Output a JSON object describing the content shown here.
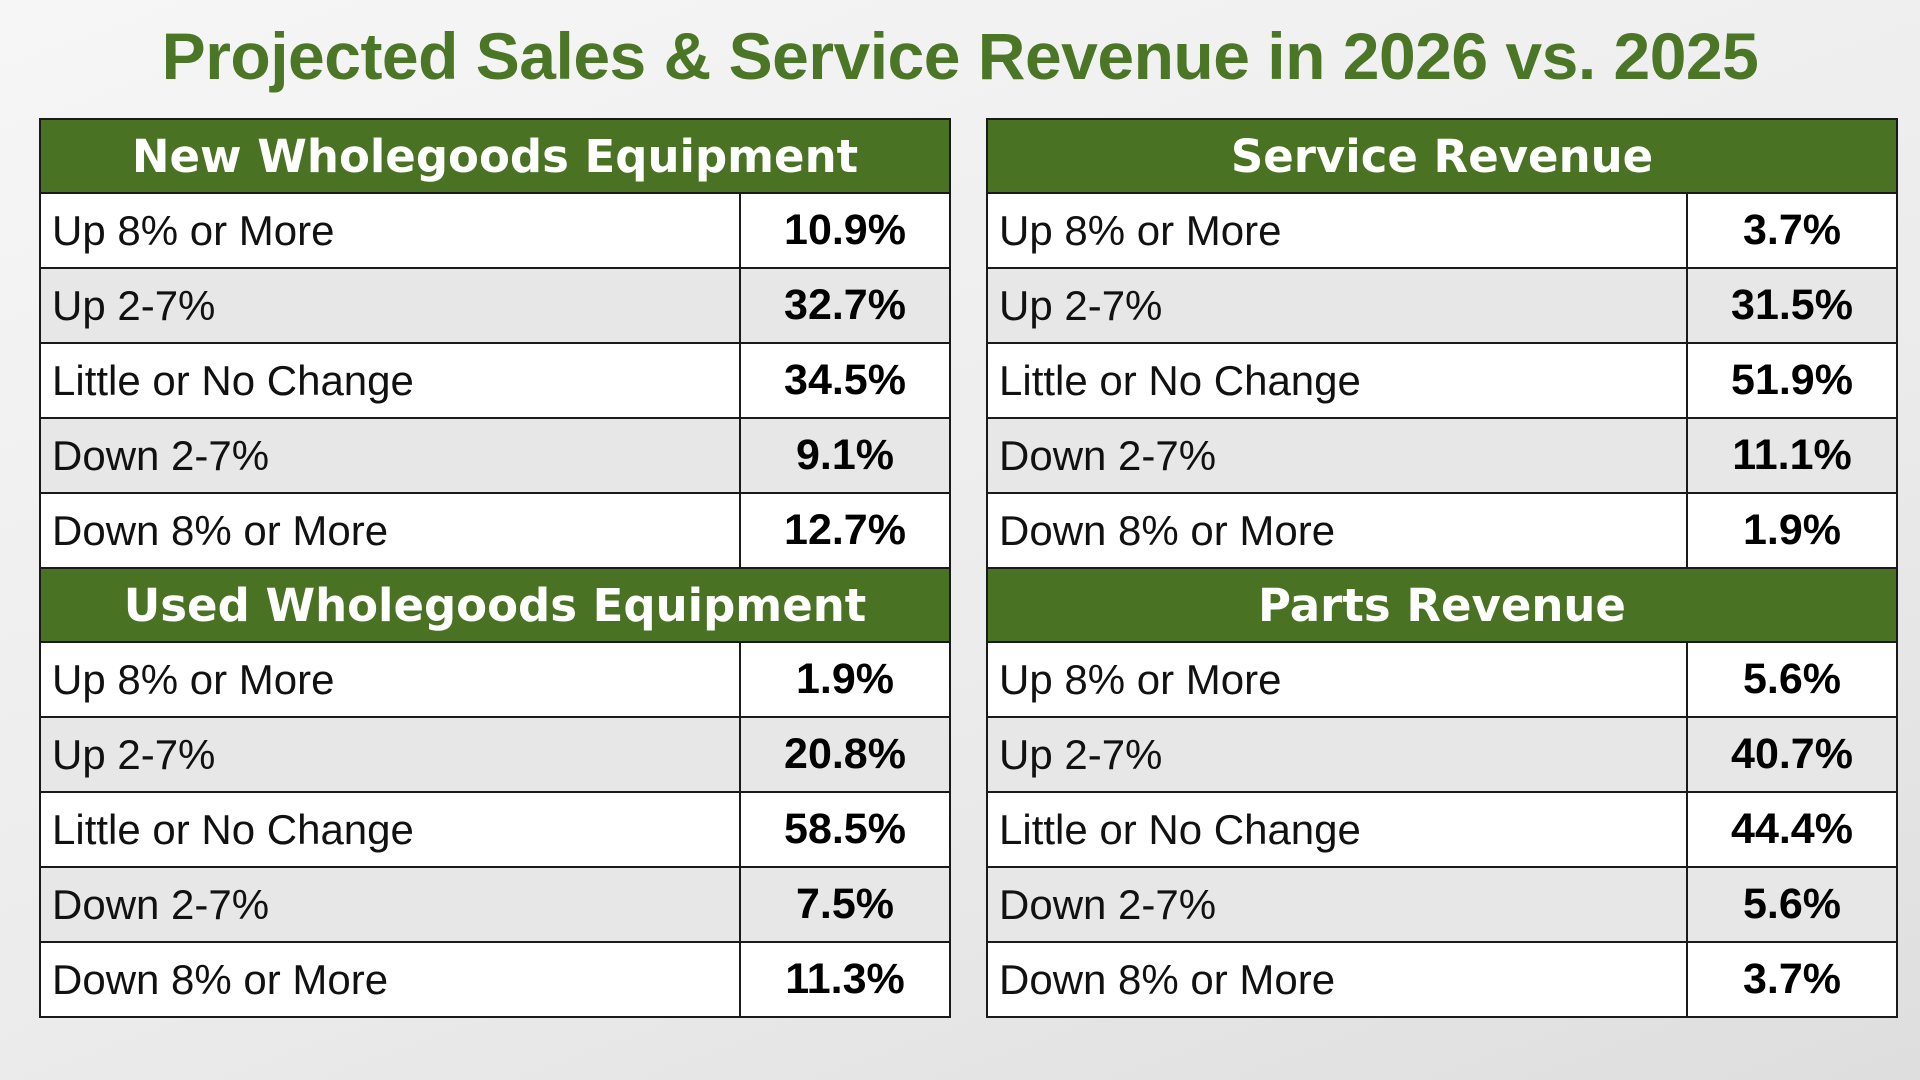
{
  "title": "Projected Sales & Service Revenue in 2026 vs. 2025",
  "colors": {
    "title": "#4a7626",
    "header_bg": "#4a7223",
    "header_text": "#ffffff",
    "row_shaded": "#e7e7e7",
    "border": "#1a1a1a"
  },
  "chart_data": [
    {
      "type": "table",
      "title": "New Wholegoods Equipment",
      "categories": [
        "Up 8% or More",
        "Up 2-7%",
        "Little or No Change",
        "Down 2-7%",
        "Down 8% or More"
      ],
      "value_labels": [
        "10.9%",
        "32.7%",
        "34.5%",
        "9.1%",
        "12.7%"
      ],
      "values": [
        10.9,
        32.7,
        34.5,
        9.1,
        12.7
      ]
    },
    {
      "type": "table",
      "title": "Used Wholegoods Equipment",
      "categories": [
        "Up 8% or More",
        "Up 2-7%",
        "Little or No Change",
        "Down 2-7%",
        "Down 8% or More"
      ],
      "value_labels": [
        "1.9%",
        "20.8%",
        "58.5%",
        "7.5%",
        "11.3%"
      ],
      "values": [
        1.9,
        20.8,
        58.5,
        7.5,
        11.3
      ]
    },
    {
      "type": "table",
      "title": "Service Revenue",
      "categories": [
        "Up 8% or More",
        "Up 2-7%",
        "Little or No Change",
        "Down 2-7%",
        "Down 8% or More"
      ],
      "value_labels": [
        "3.7%",
        "31.5%",
        "51.9%",
        "11.1%",
        "1.9%"
      ],
      "values": [
        3.7,
        31.5,
        51.9,
        11.1,
        1.9
      ]
    },
    {
      "type": "table",
      "title": "Parts Revenue",
      "categories": [
        "Up 8% or More",
        "Up 2-7%",
        "Little or No Change",
        "Down 2-7%",
        "Down 8% or More"
      ],
      "value_labels": [
        "5.6%",
        "40.7%",
        "44.4%",
        "5.6%",
        "3.7%"
      ],
      "values": [
        5.6,
        40.7,
        44.4,
        5.6,
        3.7
      ]
    }
  ]
}
